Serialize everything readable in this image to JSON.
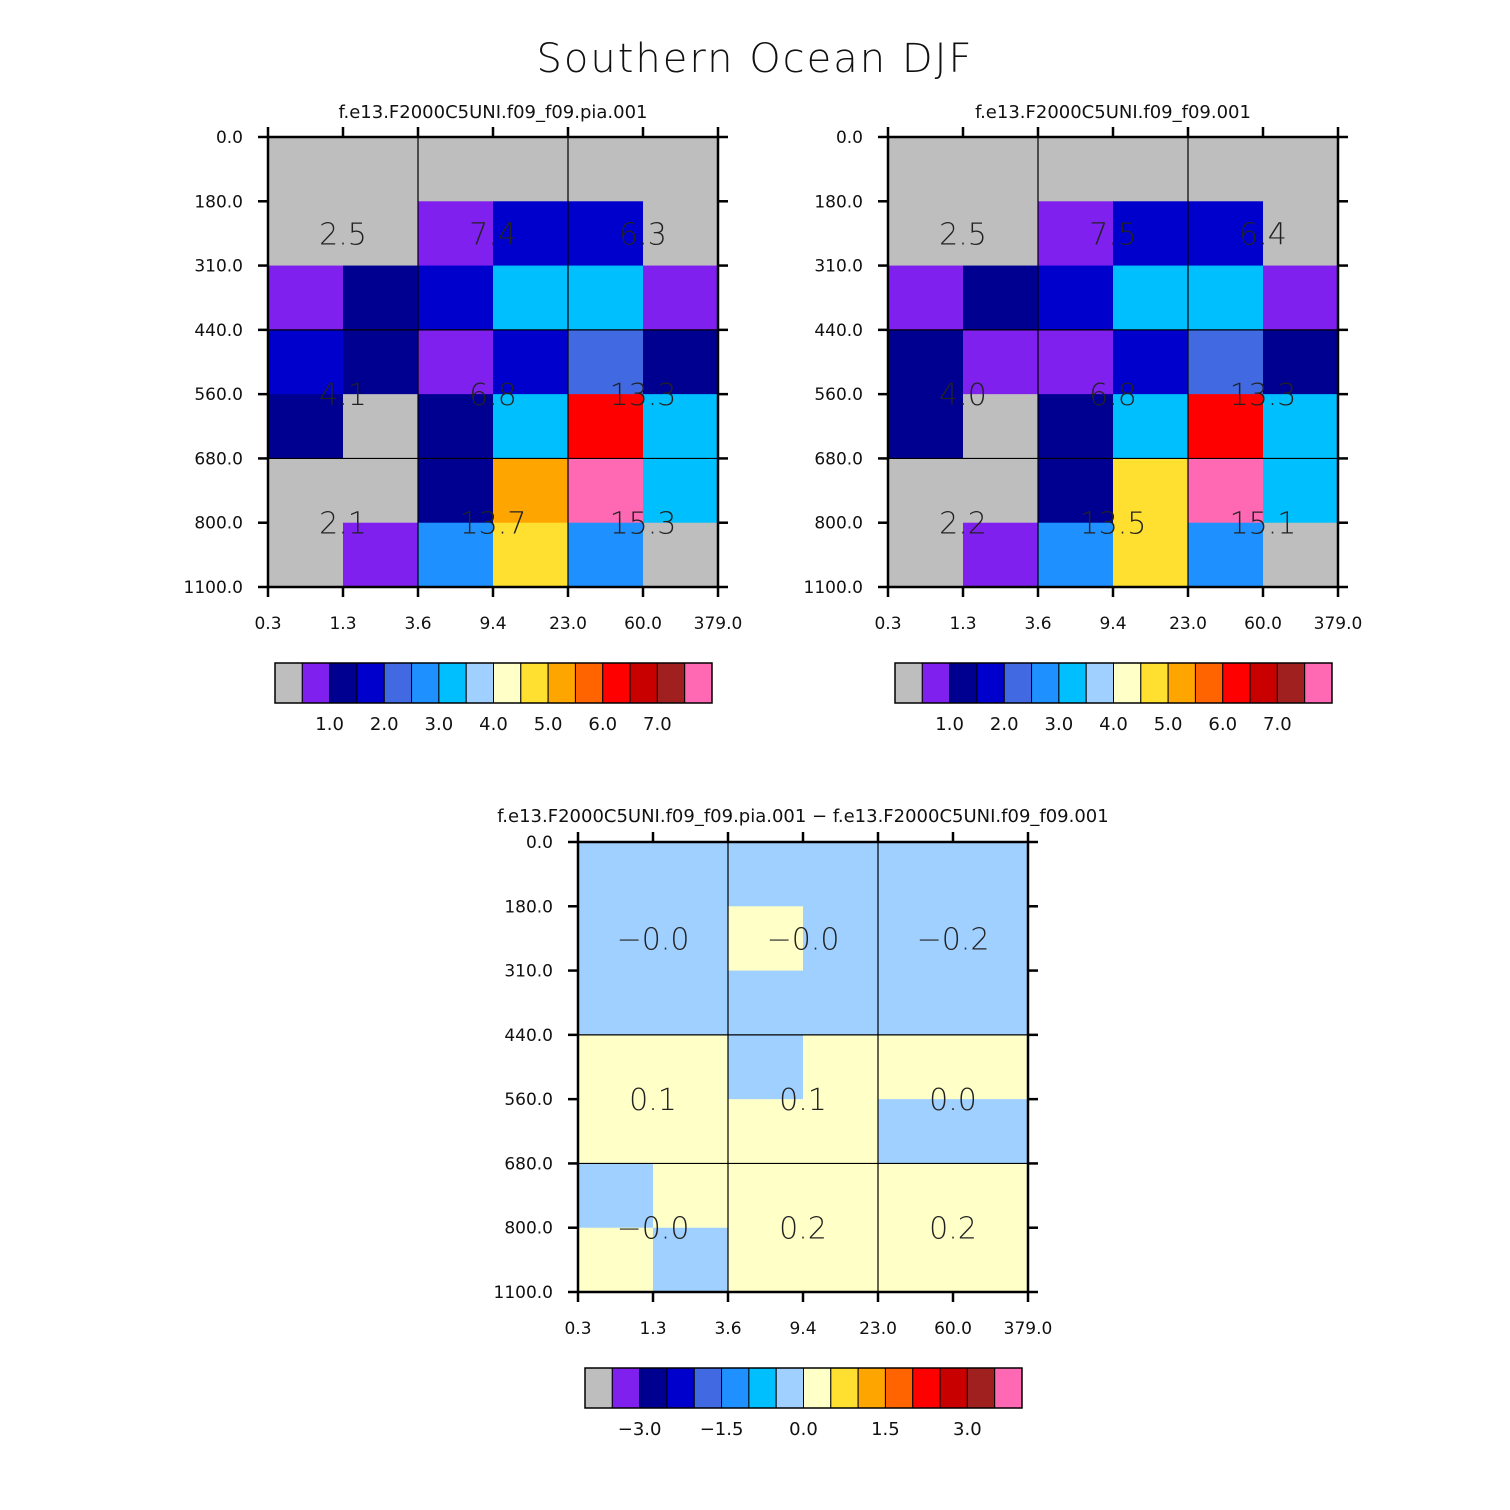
{
  "title": "Southern Ocean DJF",
  "palette": {
    "missing": "#bebebe",
    "c1": "#7f20ee",
    "c2": "#000090",
    "c3": "#0000cd",
    "c4": "#4169e1",
    "c5": "#1e90ff",
    "c6": "#00bfff",
    "c7": "#a0d0ff",
    "c8": "#ffffc8",
    "c9": "#ffe030",
    "c10": "#ffa500",
    "c11": "#ff6400",
    "c12": "#ff0000",
    "c13": "#c80000",
    "c14": "#a02020",
    "c15": "#ff69b4"
  },
  "chart_data": [
    {
      "type": "heatmap",
      "title": "f.e13.F2000C5UNI.f09_f09.pia.001",
      "x_ticks": [
        "0.3",
        "1.3",
        "3.6",
        "9.4",
        "23.0",
        "60.0",
        "379.0"
      ],
      "y_ticks": [
        "0.0",
        "180.0",
        "310.0",
        "440.0",
        "560.0",
        "680.0",
        "800.0",
        "1100.0"
      ],
      "cells": [
        [
          "missing",
          "missing",
          "missing",
          "missing",
          "missing",
          "missing"
        ],
        [
          "missing",
          "missing",
          "c1",
          "c3",
          "c3",
          "missing"
        ],
        [
          "c1",
          "c2",
          "c3",
          "c6",
          "c6",
          "c1"
        ],
        [
          "c3",
          "c2",
          "c1",
          "c3",
          "c4",
          "c2"
        ],
        [
          "c2",
          "missing",
          "c2",
          "c6",
          "c12",
          "c6"
        ],
        [
          "missing",
          "missing",
          "c2",
          "c10",
          "c15",
          "c6"
        ],
        [
          "missing",
          "c1",
          "c5",
          "c9",
          "c5",
          "missing"
        ]
      ],
      "group_totals": [
        [
          "2.5",
          "7.4",
          "6.3"
        ],
        [
          "4.1",
          "6.8",
          "13.3"
        ],
        [
          "2.1",
          "13.7",
          "15.3"
        ]
      ],
      "colorbar": {
        "colors": [
          "missing",
          "c1",
          "c2",
          "c3",
          "c4",
          "c5",
          "c6",
          "c7",
          "c8",
          "c9",
          "c10",
          "c11",
          "c12",
          "c13",
          "c14",
          "c15"
        ],
        "labels": [
          "1.0",
          "2.0",
          "3.0",
          "4.0",
          "5.0",
          "6.0",
          "7.0"
        ],
        "label_boundaries": [
          2,
          4,
          6,
          8,
          10,
          12,
          14
        ]
      }
    },
    {
      "type": "heatmap",
      "title": "f.e13.F2000C5UNI.f09_f09.001",
      "x_ticks": [
        "0.3",
        "1.3",
        "3.6",
        "9.4",
        "23.0",
        "60.0",
        "379.0"
      ],
      "y_ticks": [
        "0.0",
        "180.0",
        "310.0",
        "440.0",
        "560.0",
        "680.0",
        "800.0",
        "1100.0"
      ],
      "cells": [
        [
          "missing",
          "missing",
          "missing",
          "missing",
          "missing",
          "missing"
        ],
        [
          "missing",
          "missing",
          "c1",
          "c3",
          "c3",
          "missing"
        ],
        [
          "c1",
          "c2",
          "c3",
          "c6",
          "c6",
          "c1"
        ],
        [
          "c2",
          "c1",
          "c1",
          "c3",
          "c4",
          "c2"
        ],
        [
          "c2",
          "missing",
          "c2",
          "c6",
          "c12",
          "c6"
        ],
        [
          "missing",
          "missing",
          "c2",
          "c9",
          "c15",
          "c6"
        ],
        [
          "missing",
          "c1",
          "c5",
          "c9",
          "c5",
          "missing"
        ]
      ],
      "group_totals": [
        [
          "2.5",
          "7.5",
          "6.4"
        ],
        [
          "4.0",
          "6.8",
          "13.3"
        ],
        [
          "2.2",
          "13.5",
          "15.1"
        ]
      ],
      "colorbar": {
        "colors": [
          "missing",
          "c1",
          "c2",
          "c3",
          "c4",
          "c5",
          "c6",
          "c7",
          "c8",
          "c9",
          "c10",
          "c11",
          "c12",
          "c13",
          "c14",
          "c15"
        ],
        "labels": [
          "1.0",
          "2.0",
          "3.0",
          "4.0",
          "5.0",
          "6.0",
          "7.0"
        ],
        "label_boundaries": [
          2,
          4,
          6,
          8,
          10,
          12,
          14
        ]
      }
    },
    {
      "type": "heatmap",
      "title": "f.e13.F2000C5UNI.f09_f09.pia.001 − f.e13.F2000C5UNI.f09_f09.001",
      "x_ticks": [
        "0.3",
        "1.3",
        "3.6",
        "9.4",
        "23.0",
        "60.0",
        "379.0"
      ],
      "y_ticks": [
        "0.0",
        "180.0",
        "310.0",
        "440.0",
        "560.0",
        "680.0",
        "800.0",
        "1100.0"
      ],
      "cells": [
        [
          "c7",
          "c7",
          "c7",
          "c7",
          "c7",
          "c7"
        ],
        [
          "c7",
          "c7",
          "c8",
          "c7",
          "c7",
          "c7"
        ],
        [
          "c7",
          "c7",
          "c7",
          "c7",
          "c7",
          "c7"
        ],
        [
          "c8",
          "c8",
          "c7",
          "c8",
          "c8",
          "c8"
        ],
        [
          "c8",
          "c8",
          "c8",
          "c8",
          "c7",
          "c7"
        ],
        [
          "c7",
          "c8",
          "c8",
          "c8",
          "c8",
          "c8"
        ],
        [
          "c8",
          "c7",
          "c8",
          "c8",
          "c8",
          "c8"
        ]
      ],
      "group_totals": [
        [
          "−0.0",
          "−0.0",
          "−0.2"
        ],
        [
          "0.1",
          "0.1",
          "0.0"
        ],
        [
          "−0.0",
          "0.2",
          "0.2"
        ]
      ],
      "colorbar": {
        "colors": [
          "missing",
          "c1",
          "c2",
          "c3",
          "c4",
          "c5",
          "c6",
          "c7",
          "c8",
          "c9",
          "c10",
          "c11",
          "c12",
          "c13",
          "c14",
          "c15"
        ],
        "labels": [
          "−3.0",
          "−1.5",
          "0.0",
          "1.5",
          "3.0"
        ],
        "label_boundaries": [
          2,
          5,
          8,
          11,
          14
        ]
      }
    }
  ]
}
